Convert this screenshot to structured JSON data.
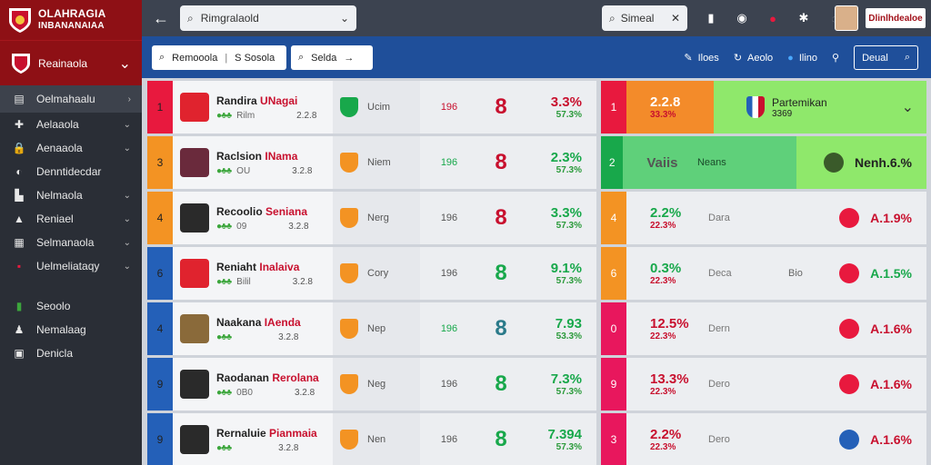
{
  "app": {
    "brand_line1": "OLAHRAGIA",
    "brand_line2": "INBANANAIAA"
  },
  "sidebar": {
    "top_label": "Reainaola",
    "items": [
      {
        "label": "Oelmahaalu",
        "icon": "list-icon",
        "active": true
      },
      {
        "label": "Aelaaola",
        "icon": "person-icon",
        "active": false
      },
      {
        "label": "Aenaaola",
        "icon": "lock-icon",
        "active": false
      },
      {
        "label": "Denntidecdar",
        "icon": "globe-icon",
        "active": false
      },
      {
        "label": "Nelmaola",
        "icon": "chart-icon",
        "active": false
      },
      {
        "label": "Reniael",
        "icon": "bell-icon",
        "active": false
      },
      {
        "label": "Selmanaola",
        "icon": "grid-icon",
        "active": false
      },
      {
        "label": "Uelmeliataqy",
        "icon": "flag-icon",
        "active": false
      }
    ],
    "bottom_items": [
      {
        "label": "Seoolo",
        "icon": "shield-icon"
      },
      {
        "label": "Nemalaag",
        "icon": "user-icon"
      },
      {
        "label": "Denicla",
        "icon": "document-icon"
      }
    ]
  },
  "topbar": {
    "search_primary": "Rimgralaold",
    "search_secondary": "Simeal",
    "user_badge": "Dlinlhdealoe"
  },
  "filterbar": {
    "chip1_left": "Remooola",
    "chip1_right": "S Sosola",
    "chip2": "Selda",
    "items": [
      "Iloes",
      "Aeolo",
      "Ilino"
    ],
    "action": "Deual"
  },
  "colors": {
    "red": "#e8193e",
    "orange": "#f39323",
    "green": "#18a84b",
    "blue": "#2460b8",
    "pink": "#e8175d",
    "highlight_green": "#8fe86b"
  },
  "left_rows": [
    {
      "idx": "1",
      "strip": "#e8193e",
      "name": "Randira",
      "name2": "UNagai",
      "sub": "Rilm",
      "num": "2.2.8",
      "club": "Ucim",
      "val": "196",
      "valcolor": "#c8102e",
      "big": "8",
      "bigcolor": "#c8102e",
      "pct": "3.3%",
      "pctsub": "57.3%",
      "pctcolor": "#c8102e",
      "crest": "#e0232e"
    },
    {
      "idx": "3",
      "strip": "#f39323",
      "name": "Raclsion",
      "name2": "INama",
      "sub": "OU",
      "num": "3.2.8",
      "club": "Niem",
      "val": "196",
      "valcolor": "#18a84b",
      "big": "8",
      "bigcolor": "#c8102e",
      "pct": "2.3%",
      "pctsub": "57.3%",
      "pctcolor": "#18a84b",
      "crest": "#6a2a3c"
    },
    {
      "idx": "4",
      "strip": "#f39323",
      "name": "Recoolio",
      "name2": "Seniana",
      "sub": "09",
      "num": "3.2.8",
      "club": "Nerg",
      "val": "196",
      "valcolor": "#555",
      "big": "8",
      "bigcolor": "#c8102e",
      "pct": "3.3%",
      "pctsub": "57.3%",
      "pctcolor": "#18a84b",
      "crest": "#2a2a2a"
    },
    {
      "idx": "6",
      "strip": "#2460b8",
      "name": "Reniaht",
      "name2": "Inalaiva",
      "sub": "Bilil",
      "num": "3.2.8",
      "club": "Cory",
      "val": "196",
      "valcolor": "#555",
      "big": "8",
      "bigcolor": "#18a84b",
      "pct": "9.1%",
      "pctsub": "57.3%",
      "pctcolor": "#18a84b",
      "crest": "#e0232e"
    },
    {
      "idx": "4",
      "strip": "#2460b8",
      "name": "Naakana",
      "name2": "IAenda",
      "sub": "",
      "num": "3.2.8",
      "club": "Nep",
      "val": "196",
      "valcolor": "#18a84b",
      "big": "8",
      "bigcolor": "#2a7a8a",
      "pct": "7.93",
      "pctsub": "53.3%",
      "pctcolor": "#18a84b",
      "crest": "#8a6a3a"
    },
    {
      "idx": "9",
      "strip": "#2460b8",
      "name": "Raodanan",
      "name2": "Rerolana",
      "sub": "0B0",
      "num": "3.2.8",
      "club": "Neg",
      "val": "196",
      "valcolor": "#555",
      "big": "8",
      "bigcolor": "#18a84b",
      "pct": "7.3%",
      "pctsub": "57.3%",
      "pctcolor": "#18a84b",
      "crest": "#2a2a2a"
    },
    {
      "idx": "9",
      "strip": "#2460b8",
      "name": "Rernaluie",
      "name2": "Pianmaia",
      "sub": "",
      "num": "3.2.8",
      "club": "Nen",
      "val": "196",
      "valcolor": "#555",
      "big": "8",
      "bigcolor": "#18a84b",
      "pct": "7.394",
      "pctsub": "57.3%",
      "pctcolor": "#18a84b",
      "crest": "#2a2a2a"
    }
  ],
  "right_rows": [
    {
      "idx": "1",
      "strip": "#e8193e",
      "pct": "2.2.8",
      "pctsub": "33.3%",
      "pctcolor": "#fff",
      "bg": "#f38b2a",
      "name": "Partemikan",
      "name2": "3369",
      "extra": "",
      "end": "",
      "endcolor": "#c8102e"
    },
    {
      "idx": "2",
      "strip": "#18a84b",
      "pct": "Vaiis",
      "pctsub": "",
      "pctcolor": "#555",
      "bg": "#8fe86b",
      "name": "Neans",
      "name2": "",
      "extra": "",
      "end": "Nenh.6.%",
      "endcolor": "#222"
    },
    {
      "idx": "4",
      "strip": "#f39323",
      "pct": "2.2%",
      "pctsub": "22.3%",
      "pctcolor": "#18a84b",
      "bg": "#eceef1",
      "name": "Dara",
      "name2": "",
      "extra": "",
      "end": "A.1.9%",
      "endcolor": "#c8102e"
    },
    {
      "idx": "6",
      "strip": "#f39323",
      "pct": "0.3%",
      "pctsub": "22.3%",
      "pctcolor": "#18a84b",
      "bg": "#eceef1",
      "name": "Deca",
      "name2": "",
      "extra": "Bio",
      "end": "A.1.5%",
      "endcolor": "#18a84b"
    },
    {
      "idx": "0",
      "strip": "#e8175d",
      "pct": "12.5%",
      "pctsub": "22.3%",
      "pctcolor": "#c8102e",
      "bg": "#eceef1",
      "name": "Dern",
      "name2": "",
      "extra": "",
      "end": "A.1.6%",
      "endcolor": "#c8102e"
    },
    {
      "idx": "9",
      "strip": "#e8175d",
      "pct": "13.3%",
      "pctsub": "22.3%",
      "pctcolor": "#c8102e",
      "bg": "#eceef1",
      "name": "Dero",
      "name2": "",
      "extra": "",
      "end": "A.1.6%",
      "endcolor": "#c8102e"
    },
    {
      "idx": "3",
      "strip": "#e8175d",
      "pct": "2.2%",
      "pctsub": "22.3%",
      "pctcolor": "#c8102e",
      "bg": "#eceef1",
      "name": "Dero",
      "name2": "",
      "extra": "",
      "end": "A.1.6%",
      "endcolor": "#c8102e"
    }
  ]
}
